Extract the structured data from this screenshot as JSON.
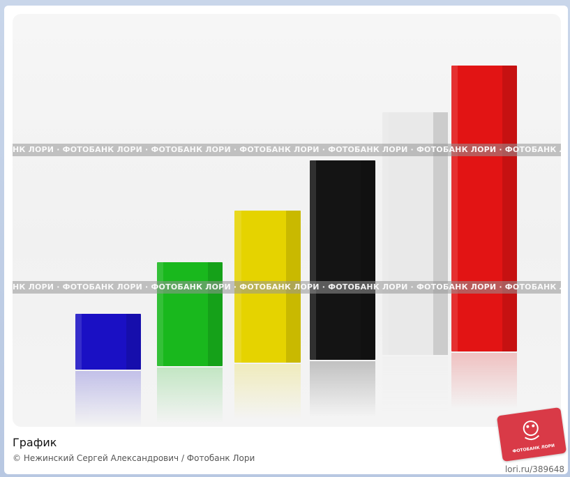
{
  "image": {
    "title": "График",
    "credit": "© Нежинский Сергей Александрович / Фотобанк Лори",
    "site": "lori.ru/389648",
    "watermark": "НК ЛОРИ · ФОТОБАНК ЛОРИ · ФОТОБАНК ЛОРИ · ФОТОБАНК ЛОРИ · ФОТОБАНК ЛОРИ · ФОТОБАНК ЛОРИ · ФОТОБАНК ЛОР",
    "logo_text": "ФОТОБАНК ЛОРИ"
  },
  "bars": [
    {
      "name": "blue",
      "color": "#1a10c4"
    },
    {
      "name": "green",
      "color": "#19b81d"
    },
    {
      "name": "yellow",
      "color": "#e5d300"
    },
    {
      "name": "black",
      "color": "#141414"
    },
    {
      "name": "white",
      "color": "#e9e9e9"
    },
    {
      "name": "red",
      "color": "#e21414"
    }
  ]
}
